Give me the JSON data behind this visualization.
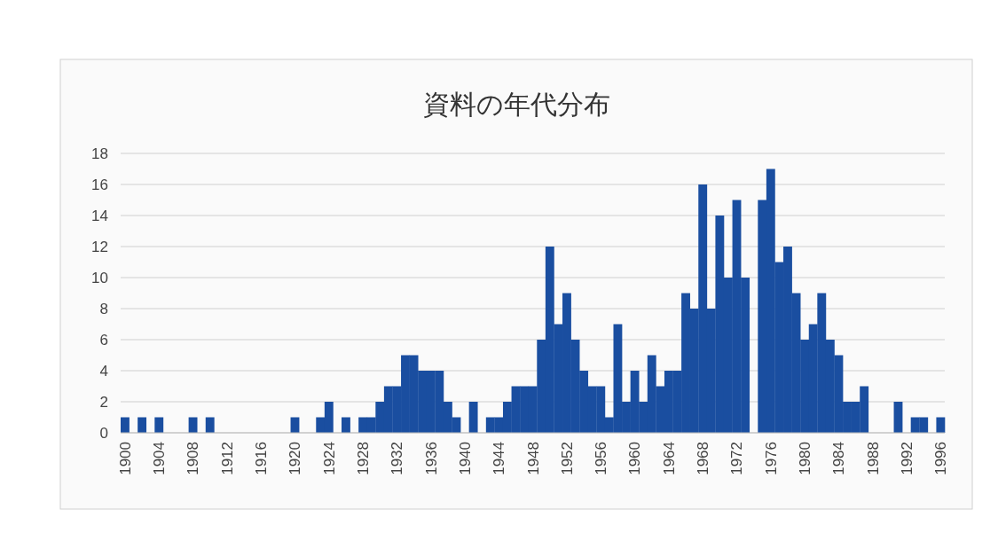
{
  "chart_data": {
    "type": "bar",
    "title": "資料の年代分布",
    "categories": [
      "1900",
      null,
      null,
      null,
      "1904",
      null,
      null,
      null,
      "1908",
      null,
      null,
      null,
      "1912",
      null,
      null,
      null,
      "1916",
      null,
      null,
      null,
      "1920",
      null,
      null,
      null,
      "1924",
      null,
      null,
      null,
      "1928",
      null,
      null,
      null,
      "1932",
      null,
      null,
      null,
      "1936",
      null,
      null,
      null,
      "1940",
      null,
      null,
      null,
      "1944",
      null,
      null,
      null,
      "1948",
      null,
      null,
      null,
      "1952",
      null,
      null,
      null,
      "1956",
      null,
      null,
      null,
      "1960",
      null,
      null,
      null,
      "1964",
      null,
      null,
      null,
      "1968",
      null,
      null,
      null,
      "1972",
      null,
      null,
      null,
      "1976",
      null,
      null,
      null,
      "1980",
      null,
      null,
      null,
      "1984",
      null,
      null,
      null,
      "1988",
      null,
      null,
      null,
      "1992",
      null,
      null,
      null,
      "1996"
    ],
    "values": [
      1,
      0,
      1,
      0,
      1,
      0,
      0,
      0,
      1,
      0,
      1,
      0,
      0,
      0,
      0,
      0,
      0,
      0,
      0,
      0,
      1,
      0,
      0,
      1,
      2,
      0,
      1,
      0,
      1,
      1,
      2,
      3,
      3,
      5,
      5,
      4,
      4,
      4,
      2,
      1,
      0,
      2,
      0,
      1,
      1,
      2,
      3,
      3,
      3,
      6,
      12,
      7,
      9,
      6,
      4,
      3,
      3,
      1,
      7,
      2,
      4,
      2,
      5,
      3,
      4,
      4,
      9,
      8,
      16,
      8,
      14,
      10,
      15,
      10,
      0,
      15,
      17,
      11,
      12,
      9,
      6,
      7,
      9,
      6,
      5,
      2,
      2,
      3,
      0,
      0,
      0,
      2,
      0,
      1,
      1,
      0,
      1
    ],
    "color": "#1a4ea0",
    "ylim": [
      0,
      18
    ],
    "yticks": [
      0,
      2,
      4,
      6,
      8,
      10,
      12,
      14,
      16,
      18
    ],
    "grid": "y"
  }
}
